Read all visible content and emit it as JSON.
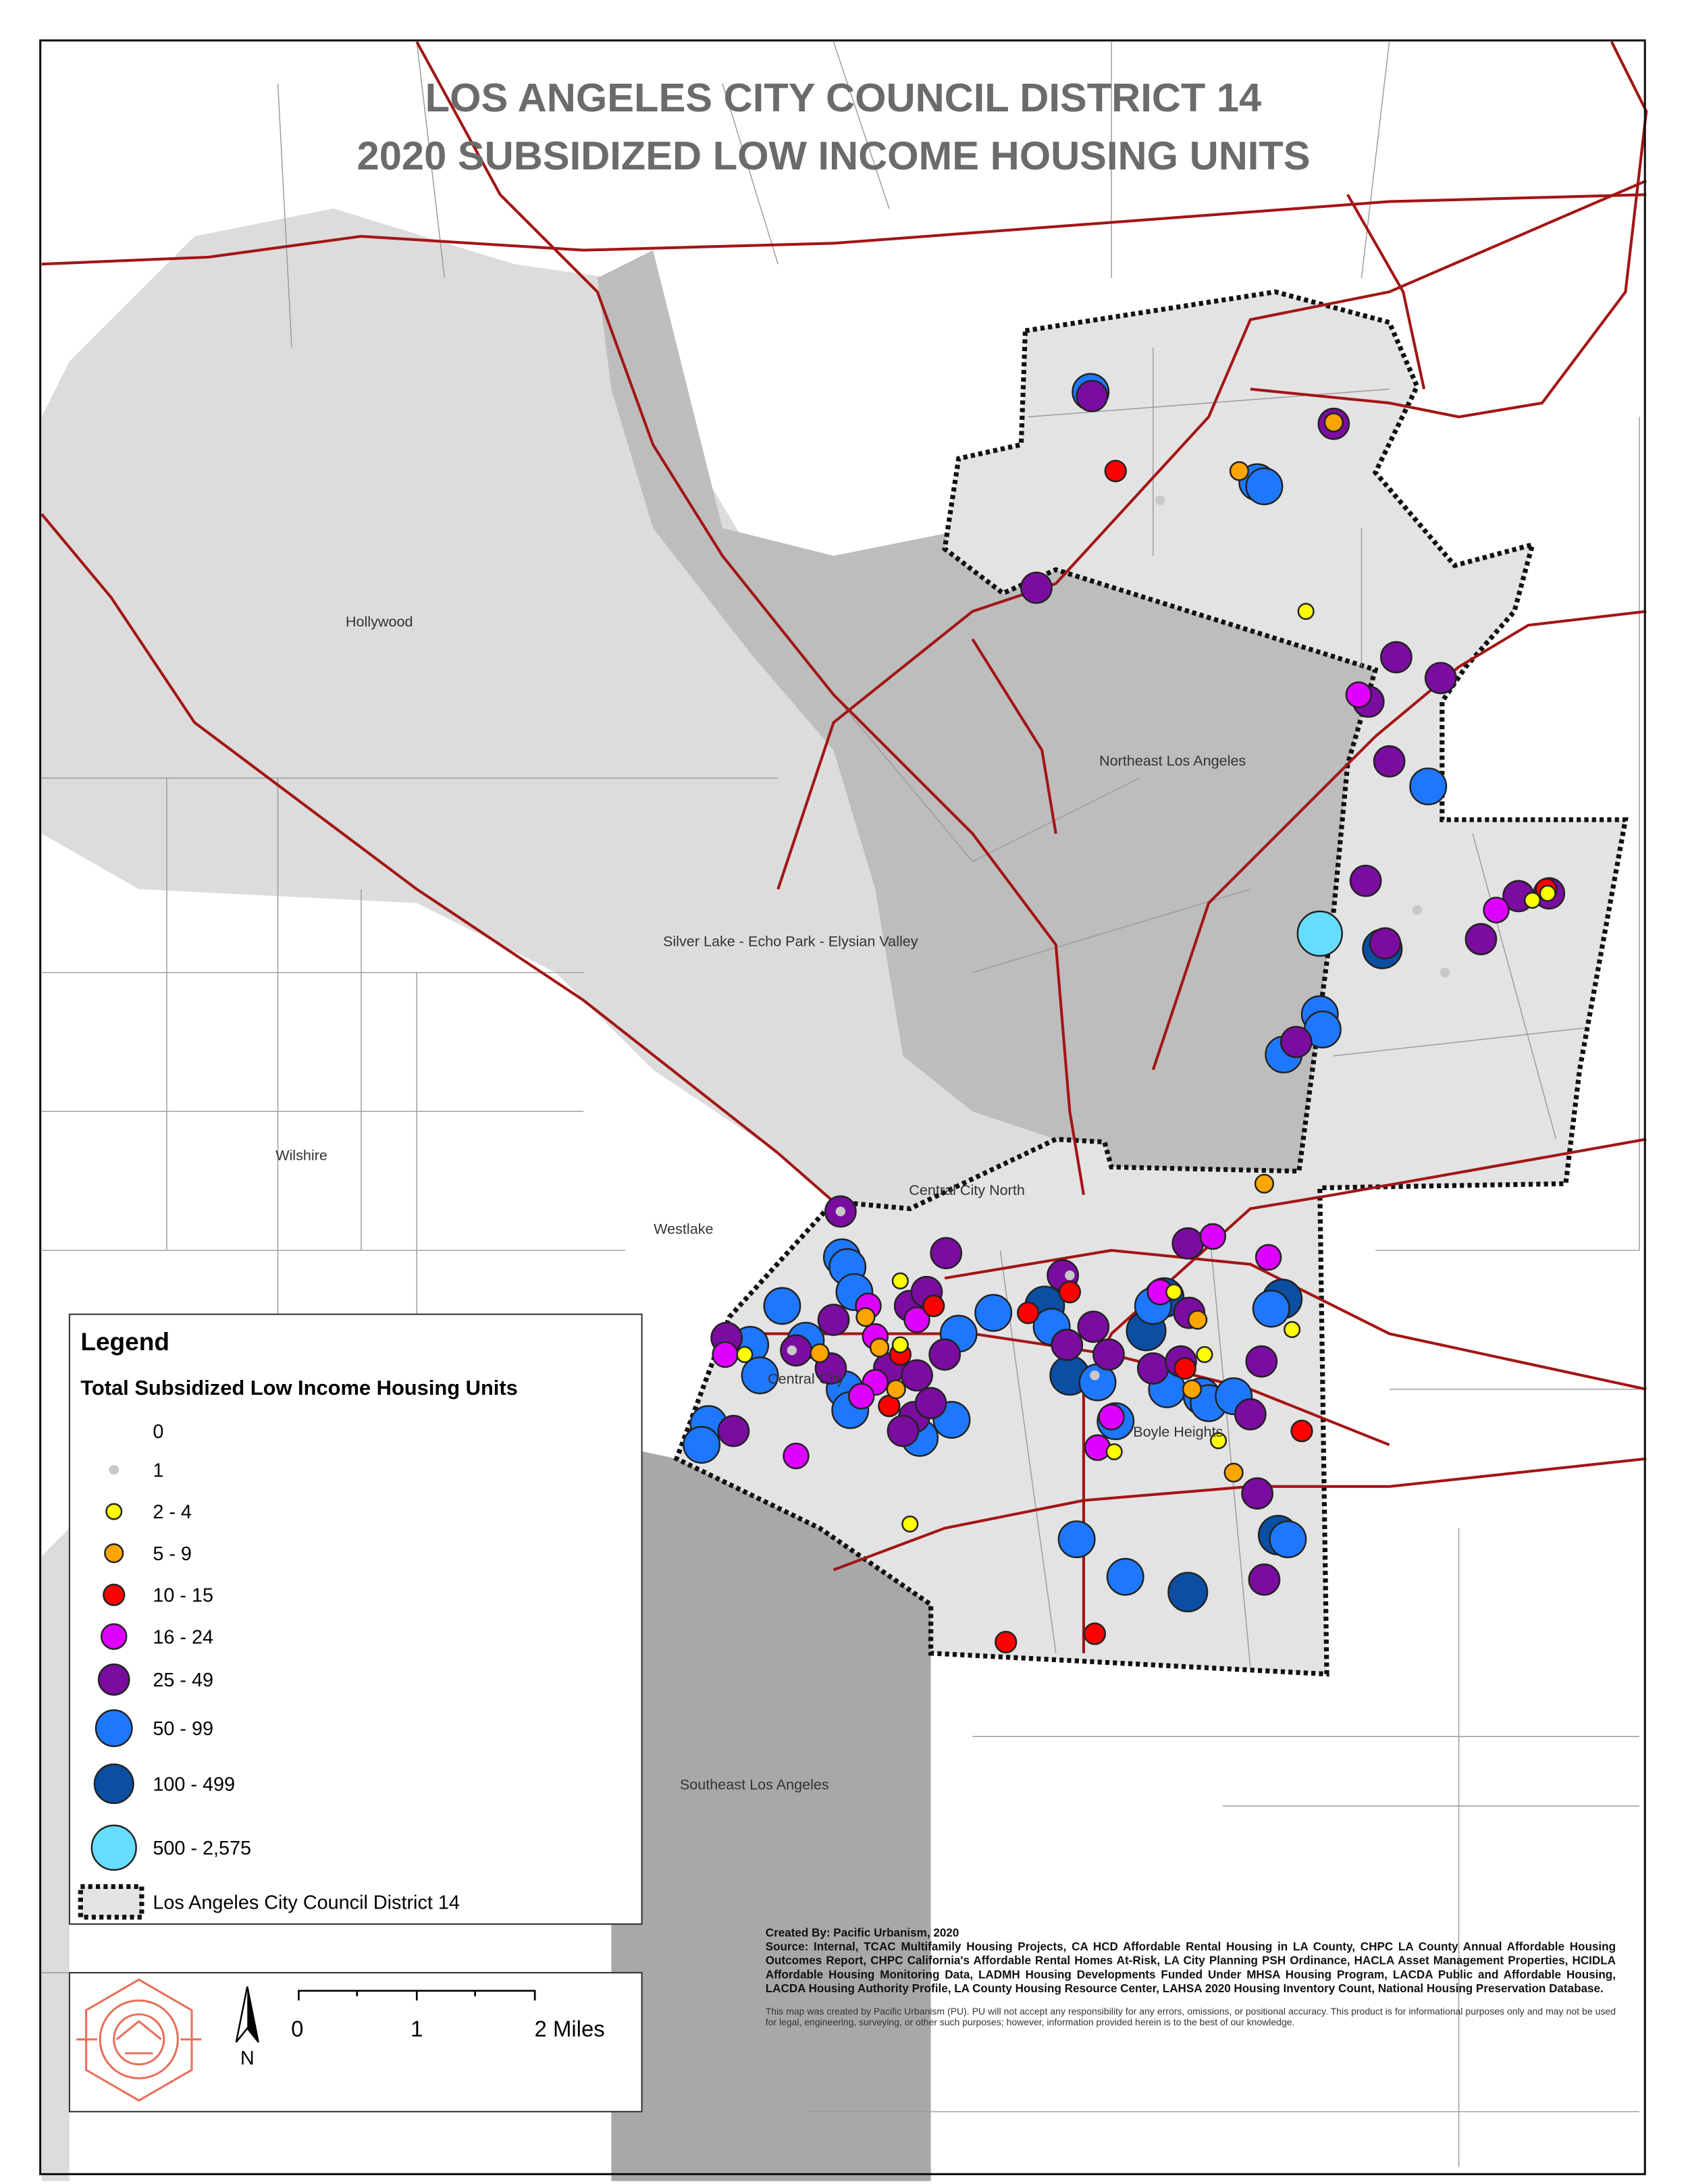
{
  "title": [
    "LOS ANGELES CITY COUNCIL DISTRICT 14",
    "2020 SUBSIDIZED LOW INCOME HOUSING UNITS"
  ],
  "places": [
    "Hollywood",
    "Northeast Los Angeles",
    "Silver Lake - Echo Park - Elysian Valley",
    "Wilshire",
    "Central City North",
    "Westlake",
    "Central City",
    "Boyle Heights",
    "Southeast Los Angeles"
  ],
  "legend": {
    "title": "Legend",
    "subtitle": "Total Subsidized Low Income Housing Units",
    "items": [
      {
        "label": "0",
        "color": "#ffffff"
      },
      {
        "label": "1",
        "color": "#c8c8c8"
      },
      {
        "label": "2 - 4",
        "color": "#ffff00"
      },
      {
        "label": "5 - 9",
        "color": "#ffa500"
      },
      {
        "label": "10 - 15",
        "color": "#ff0000"
      },
      {
        "label": "16 - 24",
        "color": "#dd00ff"
      },
      {
        "label": "25 - 49",
        "color": "#7a0ca0"
      },
      {
        "label": "50 - 99",
        "color": "#1e78ff"
      },
      {
        "label": "100 - 499",
        "color": "#0b4ea2"
      },
      {
        "label": "500 - 2,575",
        "color": "#66ddff"
      }
    ],
    "boundary": "Los Angeles City Council District 14"
  },
  "scale": {
    "labels": [
      "0",
      "1",
      "2 Miles"
    ],
    "north": "N"
  },
  "credits": {
    "created": "Created By: Pacific Urbanism, 2020",
    "source": "Source: Internal, TCAC Multifamily Housing Projects, CA HCD Affordable Rental Housing in LA County, CHPC LA County Annual Affordable Housing Outcomes Report, CHPC California's Affordable Rental Homes At-Risk, LA City Planning PSH Ordinance, HACLA Asset Management Properties, HCIDLA Affordable Housing Monitoring Data, LADMH Housing Developments Funded Under MHSA Housing Program, LACDA Public and Affordable Housing, LACDA Housing Authority Profile, LA County Housing Resource Center, LAHSA 2020 Housing Inventory Count, National Housing Preservation Database.",
    "disclaimer": "This map was created by Pacific Urbanism (PU). PU will not accept any responsibility for any errors, omissions, or positional accuracy. This product is for informational purposes only and may not be used for legal, engineering, surveying, or other such purposes; however, information provided herein is to the best of our knowledge."
  }
}
